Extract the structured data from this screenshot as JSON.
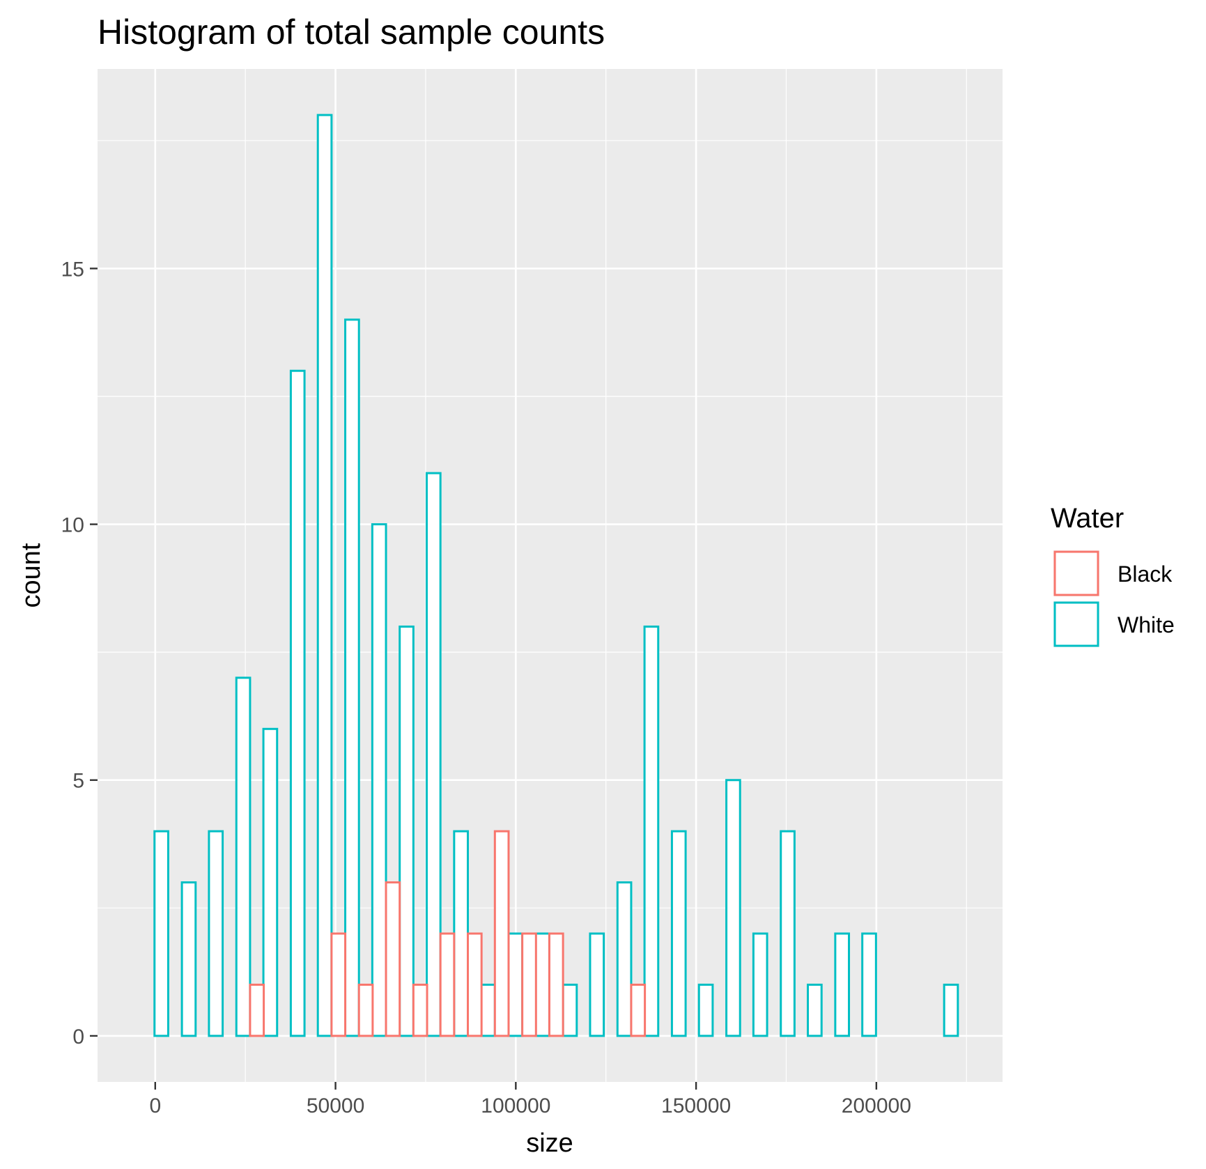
{
  "chart_data": {
    "type": "bar",
    "subtype": "histogram",
    "title": "Histogram of total sample counts",
    "xlabel": "size",
    "ylabel": "count",
    "xlim": [
      -16000,
      235000
    ],
    "ylim": [
      -0.9,
      18.9
    ],
    "x_ticks": [
      {
        "value": 0,
        "label": "0"
      },
      {
        "value": 50000,
        "label": "50000"
      },
      {
        "value": 100000,
        "label": "100000"
      },
      {
        "value": 150000,
        "label": "150000"
      },
      {
        "value": 200000,
        "label": "200000"
      }
    ],
    "y_ticks": [
      {
        "value": 0,
        "label": "0"
      },
      {
        "value": 5,
        "label": "5"
      },
      {
        "value": 10,
        "label": "10"
      },
      {
        "value": 15,
        "label": "15"
      }
    ],
    "grid": true,
    "bar_fill": "#ffffff",
    "panel_background": "#ebebeb",
    "legend": {
      "title": "Water",
      "position": "right",
      "entries": [
        {
          "name": "Black",
          "color": "#f8766d"
        },
        {
          "name": "White",
          "color": "#00bfc4"
        }
      ]
    },
    "series": [
      {
        "name": "White",
        "color": "#00bfc4",
        "bars": [
          {
            "x": 1700,
            "value": 4
          },
          {
            "x": 9300,
            "value": 3
          },
          {
            "x": 16800,
            "value": 4
          },
          {
            "x": 24400,
            "value": 7
          },
          {
            "x": 31900,
            "value": 6
          },
          {
            "x": 39500,
            "value": 13
          },
          {
            "x": 47000,
            "value": 18
          },
          {
            "x": 54600,
            "value": 14
          },
          {
            "x": 62100,
            "value": 10
          },
          {
            "x": 69700,
            "value": 8
          },
          {
            "x": 77200,
            "value": 11
          },
          {
            "x": 84800,
            "value": 4
          },
          {
            "x": 92300,
            "value": 1
          },
          {
            "x": 99900,
            "value": 2
          },
          {
            "x": 107400,
            "value": 2
          },
          {
            "x": 115000,
            "value": 1
          },
          {
            "x": 122500,
            "value": 2
          },
          {
            "x": 130100,
            "value": 3
          },
          {
            "x": 137600,
            "value": 8
          },
          {
            "x": 145200,
            "value": 4
          },
          {
            "x": 152700,
            "value": 1
          },
          {
            "x": 160300,
            "value": 5
          },
          {
            "x": 167800,
            "value": 2
          },
          {
            "x": 175400,
            "value": 4
          },
          {
            "x": 182900,
            "value": 1
          },
          {
            "x": 190500,
            "value": 2
          },
          {
            "x": 198000,
            "value": 2
          },
          {
            "x": 205600,
            "value": 0
          },
          {
            "x": 213100,
            "value": 0
          },
          {
            "x": 220700,
            "value": 1
          }
        ]
      },
      {
        "name": "Black",
        "color": "#f8766d",
        "bars": [
          {
            "x": -2000,
            "value": 0
          },
          {
            "x": 5500,
            "value": 0
          },
          {
            "x": 13100,
            "value": 0
          },
          {
            "x": 20600,
            "value": 0
          },
          {
            "x": 28200,
            "value": 1
          },
          {
            "x": 35700,
            "value": 0
          },
          {
            "x": 43300,
            "value": 0
          },
          {
            "x": 50800,
            "value": 2
          },
          {
            "x": 58400,
            "value": 1
          },
          {
            "x": 65900,
            "value": 3
          },
          {
            "x": 73500,
            "value": 1
          },
          {
            "x": 81000,
            "value": 2
          },
          {
            "x": 88600,
            "value": 2
          },
          {
            "x": 96100,
            "value": 4
          },
          {
            "x": 103700,
            "value": 2
          },
          {
            "x": 111200,
            "value": 2
          },
          {
            "x": 118800,
            "value": 0
          },
          {
            "x": 126300,
            "value": 0
          },
          {
            "x": 133900,
            "value": 1
          },
          {
            "x": 141400,
            "value": 0
          },
          {
            "x": 149000,
            "value": 0
          },
          {
            "x": 156500,
            "value": 0
          },
          {
            "x": 164100,
            "value": 0
          },
          {
            "x": 171600,
            "value": 0
          },
          {
            "x": 179200,
            "value": 0
          },
          {
            "x": 186700,
            "value": 0
          },
          {
            "x": 194300,
            "value": 0
          },
          {
            "x": 201800,
            "value": 0
          },
          {
            "x": 209400,
            "value": 0
          },
          {
            "x": 216900,
            "value": 0
          }
        ]
      }
    ]
  }
}
